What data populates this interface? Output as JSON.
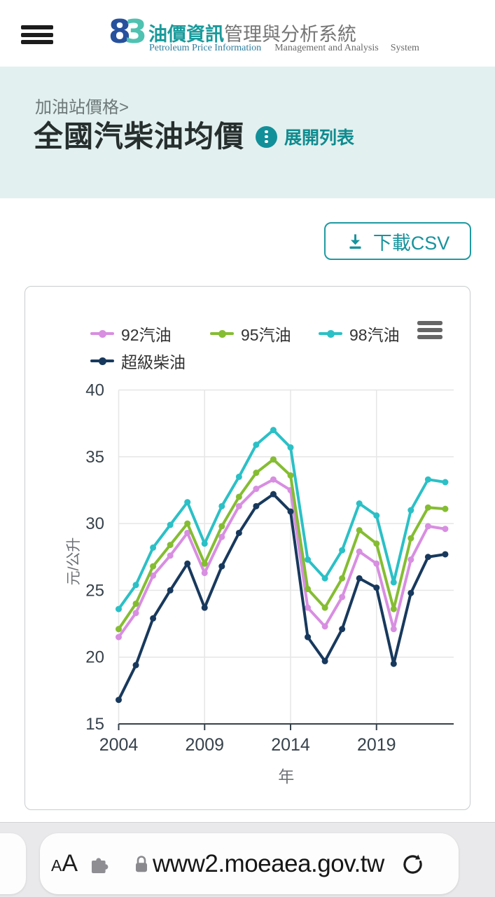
{
  "header": {
    "logo_char_blue": "8",
    "logo_char_teal": "3",
    "title_primary": "油價資訊",
    "title_secondary": "管理與分析系統",
    "subtitle_primary": "Petroleum Price Information",
    "subtitle_secondary": "Management and Analysis",
    "subtitle_tertiary": "System"
  },
  "banner": {
    "breadcrumb": "加油站價格>",
    "page_title": "全國汽柴油均價",
    "expand_link": "展開列表"
  },
  "toolbar": {
    "download_csv_label": "下載CSV"
  },
  "browser_bar": {
    "reader_a_small": "A",
    "reader_a_large": "A",
    "url": "www2.moeaea.gov.tw"
  },
  "colors": {
    "brand_teal": "#1a9a9b",
    "logo_blue": "#27519c",
    "logo_teal": "#4fc2b2",
    "banner_bg": "#e2f0ef",
    "link_teal": "#0f8b8f",
    "button_teal": "#1f9aa1",
    "gridline": "#e6e6e6",
    "axis_text": "#37424b",
    "axis_title_text": "#6d7276"
  },
  "chart_data": {
    "type": "line",
    "title": "",
    "xlabel": "年",
    "ylabel": "元/公升",
    "ylim": [
      15,
      40
    ],
    "yticks": [
      15,
      20,
      25,
      30,
      35,
      40
    ],
    "xticks": [
      2004,
      2009,
      2014,
      2019
    ],
    "grid": true,
    "legend_position": "top",
    "x": [
      2004,
      2005,
      2006,
      2007,
      2008,
      2009,
      2010,
      2011,
      2012,
      2013,
      2014,
      2015,
      2016,
      2017,
      2018,
      2019,
      2020,
      2021,
      2022,
      2023
    ],
    "series": [
      {
        "name": "92汽油",
        "color": "#d88ee1",
        "values": [
          21.5,
          23.3,
          26.1,
          27.6,
          29.3,
          26.3,
          29.0,
          31.3,
          32.6,
          33.3,
          32.5,
          23.7,
          22.3,
          24.5,
          27.9,
          27.0,
          22.1,
          27.3,
          29.8,
          29.6
        ]
      },
      {
        "name": "95汽油",
        "color": "#85bd32",
        "values": [
          22.1,
          24.0,
          26.8,
          28.4,
          30.0,
          27.0,
          29.8,
          32.0,
          33.8,
          34.8,
          33.6,
          25.1,
          23.7,
          25.9,
          29.5,
          28.5,
          23.6,
          28.9,
          31.2,
          31.1
        ]
      },
      {
        "name": "98汽油",
        "color": "#2bc0c6",
        "values": [
          23.6,
          25.4,
          28.2,
          29.9,
          31.6,
          28.5,
          31.3,
          33.5,
          35.9,
          37.0,
          35.7,
          27.3,
          25.9,
          28.0,
          31.5,
          30.6,
          25.6,
          31.0,
          33.3,
          33.1
        ]
      },
      {
        "name": "超級柴油",
        "color": "#18395d",
        "values": [
          16.8,
          19.4,
          22.9,
          25.0,
          27.0,
          23.7,
          26.8,
          29.3,
          31.3,
          32.2,
          30.9,
          21.5,
          19.7,
          22.1,
          25.9,
          25.2,
          19.5,
          24.8,
          27.5,
          27.7
        ]
      }
    ]
  }
}
